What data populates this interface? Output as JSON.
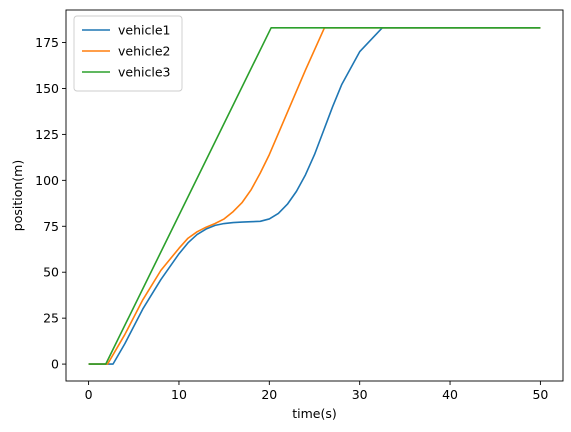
{
  "chart_data": {
    "type": "line",
    "xlabel": "time(s)",
    "ylabel": "position(m)",
    "xlim": [
      -2.5,
      52.5
    ],
    "ylim": [
      -9.2,
      192.7
    ],
    "xticks": [
      0,
      10,
      20,
      30,
      40,
      50
    ],
    "yticks": [
      0,
      25,
      50,
      75,
      100,
      125,
      150,
      175
    ],
    "grid": false,
    "legend": "top-left",
    "series": [
      {
        "name": "vehicle1",
        "color": "#1f77b4",
        "x": [
          0,
          2.7,
          4,
          6,
          8,
          10,
          11,
          12,
          13,
          14,
          15,
          16,
          17,
          18,
          19,
          20,
          21,
          22,
          23,
          24,
          25,
          26,
          27,
          28,
          30,
          32.5,
          33,
          40,
          50
        ],
        "y": [
          0,
          0,
          11,
          30,
          46,
          60,
          66,
          70.5,
          73.5,
          75.5,
          76.5,
          77,
          77.3,
          77.5,
          77.7,
          79,
          82,
          87,
          94,
          103,
          114,
          127,
          140,
          152,
          170,
          183,
          183,
          183,
          183
        ]
      },
      {
        "name": "vehicle2",
        "color": "#ff7f0e",
        "x": [
          0,
          2.1,
          4,
          6,
          8,
          10,
          11,
          12,
          13,
          14,
          15,
          16,
          17,
          18,
          19,
          20,
          22,
          24,
          26.1,
          30,
          40,
          50
        ],
        "y": [
          0,
          0,
          16,
          35,
          51,
          63,
          68.5,
          72,
          74.5,
          76.5,
          79,
          83,
          88,
          95,
          104,
          114,
          137,
          160,
          183,
          183,
          183,
          183
        ]
      },
      {
        "name": "vehicle3",
        "color": "#2ca02c",
        "x": [
          0,
          1.9,
          20.2,
          30,
          40,
          50
        ],
        "y": [
          0,
          0,
          183,
          183,
          183,
          183
        ]
      }
    ]
  }
}
